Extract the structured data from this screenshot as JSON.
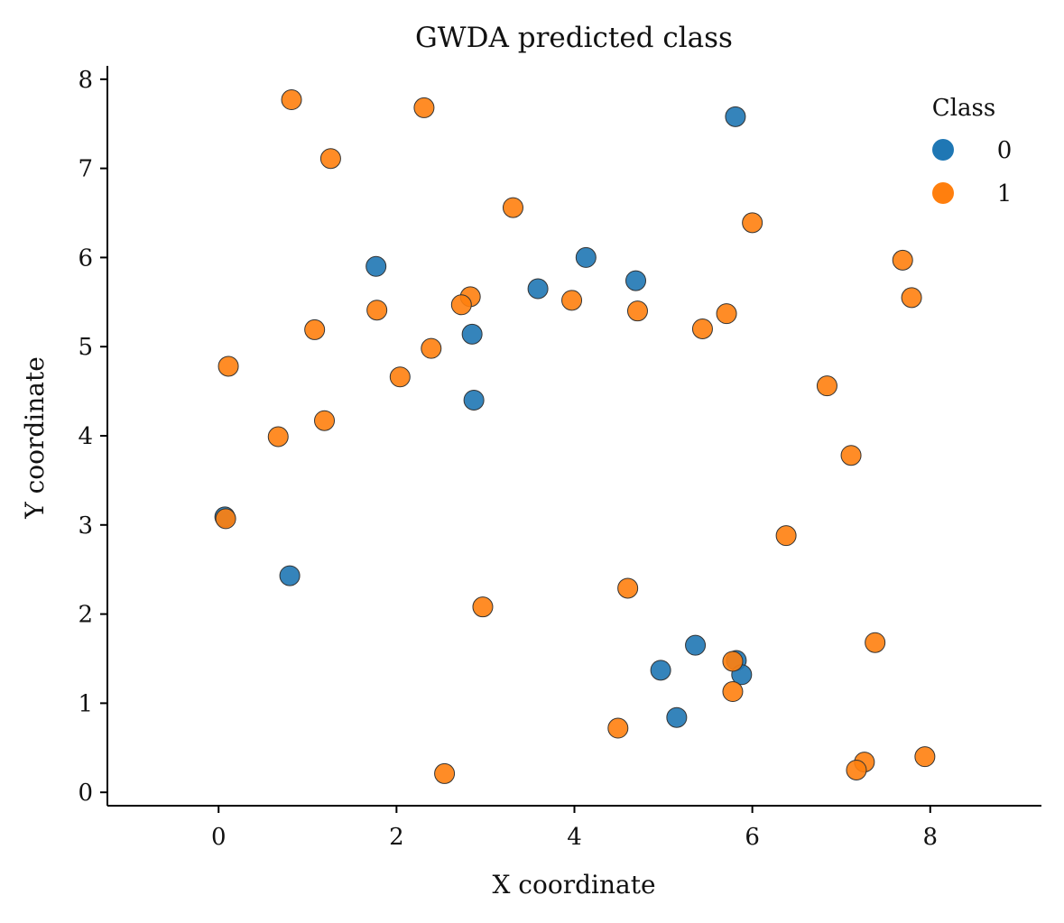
{
  "chart_data": {
    "type": "scatter",
    "title": "GWDA predicted class",
    "xlabel": "X coordinate",
    "ylabel": "Y coordinate",
    "xlim": [
      -1.25,
      9.25
    ],
    "ylim": [
      -0.15,
      8.15
    ],
    "x_ticks": [
      0,
      2,
      4,
      6,
      8
    ],
    "y_ticks": [
      0,
      1,
      2,
      3,
      4,
      5,
      6,
      7,
      8
    ],
    "grid": false,
    "legend": {
      "title": "Class",
      "position": "top-right"
    },
    "series": [
      {
        "name": "0",
        "color": "#1f77b4",
        "points": [
          [
            5.81,
            7.58
          ],
          [
            1.77,
            5.9
          ],
          [
            4.13,
            6.0
          ],
          [
            4.69,
            5.74
          ],
          [
            3.59,
            5.65
          ],
          [
            2.85,
            5.14
          ],
          [
            2.87,
            4.4
          ],
          [
            0.07,
            3.09
          ],
          [
            0.8,
            2.43
          ],
          [
            5.36,
            1.65
          ],
          [
            4.97,
            1.37
          ],
          [
            5.82,
            1.48
          ],
          [
            5.88,
            1.32
          ],
          [
            5.15,
            0.84
          ]
        ]
      },
      {
        "name": "1",
        "color": "#ff7f0e",
        "points": [
          [
            0.82,
            7.77
          ],
          [
            2.31,
            7.68
          ],
          [
            1.26,
            7.11
          ],
          [
            3.31,
            6.56
          ],
          [
            6.0,
            6.39
          ],
          [
            7.69,
            5.97
          ],
          [
            7.79,
            5.55
          ],
          [
            2.83,
            5.56
          ],
          [
            2.73,
            5.47
          ],
          [
            3.97,
            5.52
          ],
          [
            1.78,
            5.41
          ],
          [
            4.71,
            5.4
          ],
          [
            5.71,
            5.37
          ],
          [
            5.44,
            5.2
          ],
          [
            1.08,
            5.19
          ],
          [
            2.39,
            4.98
          ],
          [
            0.11,
            4.78
          ],
          [
            2.04,
            4.66
          ],
          [
            6.84,
            4.56
          ],
          [
            1.19,
            4.17
          ],
          [
            0.67,
            3.99
          ],
          [
            7.11,
            3.78
          ],
          [
            0.08,
            3.07
          ],
          [
            6.38,
            2.88
          ],
          [
            4.6,
            2.29
          ],
          [
            2.97,
            2.08
          ],
          [
            7.38,
            1.68
          ],
          [
            5.78,
            1.47
          ],
          [
            5.78,
            1.13
          ],
          [
            4.49,
            0.72
          ],
          [
            7.94,
            0.4
          ],
          [
            7.26,
            0.34
          ],
          [
            7.17,
            0.25
          ],
          [
            2.54,
            0.21
          ]
        ]
      }
    ]
  }
}
